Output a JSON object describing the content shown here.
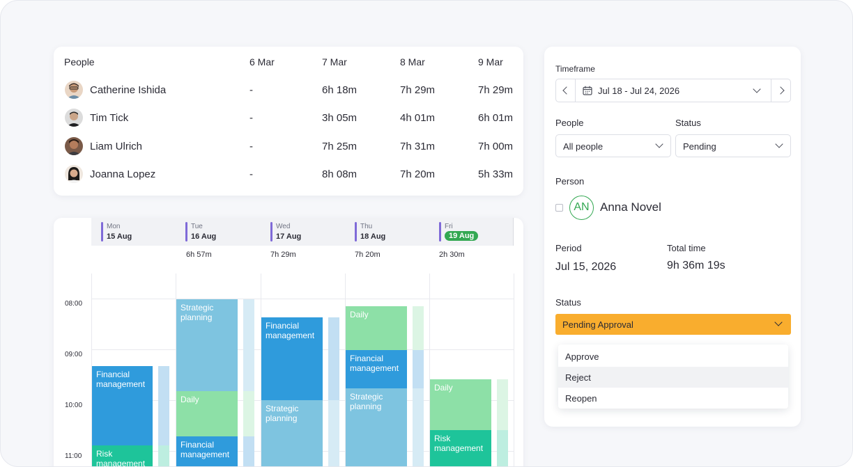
{
  "people_table": {
    "header_people": "People",
    "dates": [
      "6 Mar",
      "7 Mar",
      "8 Mar",
      "9 Mar"
    ],
    "rows": [
      {
        "name": "Catherine Ishida",
        "values": [
          "-",
          "6h 18m",
          "7h 29m",
          "7h 29m"
        ]
      },
      {
        "name": "Tim Tick",
        "values": [
          "-",
          "3h 05m",
          "4h 01m",
          "6h 01m"
        ]
      },
      {
        "name": "Liam Ulrich",
        "values": [
          "-",
          "7h 25m",
          "7h 31m",
          "7h 00m"
        ]
      },
      {
        "name": "Joanna Lopez",
        "values": [
          "-",
          "8h 08m",
          "7h 20m",
          "5h 33m"
        ]
      }
    ]
  },
  "calendar": {
    "days": [
      {
        "weekday": "Mon",
        "date": "15 Aug",
        "total": ""
      },
      {
        "weekday": "Tue",
        "date": "16 Aug",
        "total": "6h 57m"
      },
      {
        "weekday": "Wed",
        "date": "17 Aug",
        "total": "7h 29m"
      },
      {
        "weekday": "Thu",
        "date": "18 Aug",
        "total": "7h 20m"
      },
      {
        "weekday": "Fri",
        "date": "19 Aug",
        "total": "2h 30m"
      }
    ],
    "hours": [
      "08:00",
      "09:00",
      "10:00",
      "11:00"
    ],
    "blocks": {
      "mon_financial": "Financial management",
      "mon_risk": "Risk management",
      "tue_strategic": "Strategic planning",
      "tue_daily": "Daily",
      "tue_financial": "Financial management",
      "wed_financial": "Financial management",
      "wed_strategic": "Strategic planning",
      "thu_daily": "Daily",
      "thu_financial": "Financial management",
      "thu_strategic": "Strategic planning",
      "fri_daily": "Daily",
      "fri_risk": "Risk management"
    },
    "colors": {
      "financial": "#2f9bdc",
      "strategic": "#7ec4e0",
      "daily": "#8de0a7",
      "risk": "#1ec49a"
    }
  },
  "panel": {
    "timeframe_label": "Timeframe",
    "timeframe_value": "Jul 18 - Jul 24, 2026",
    "people_label": "People",
    "people_value": "All people",
    "status_label": "Status",
    "status_value": "Pending",
    "person_label": "Person",
    "person_initials": "AN",
    "person_name": "Anna Novel",
    "period_label": "Period",
    "period_value": "Jul 15, 2026",
    "total_label": "Total time",
    "total_value": "9h 36m 19s",
    "status2_label": "Status",
    "status2_value": "Pending Approval",
    "status_color": "#f9ad2e",
    "menu": [
      "Approve",
      "Reject",
      "Reopen"
    ]
  }
}
